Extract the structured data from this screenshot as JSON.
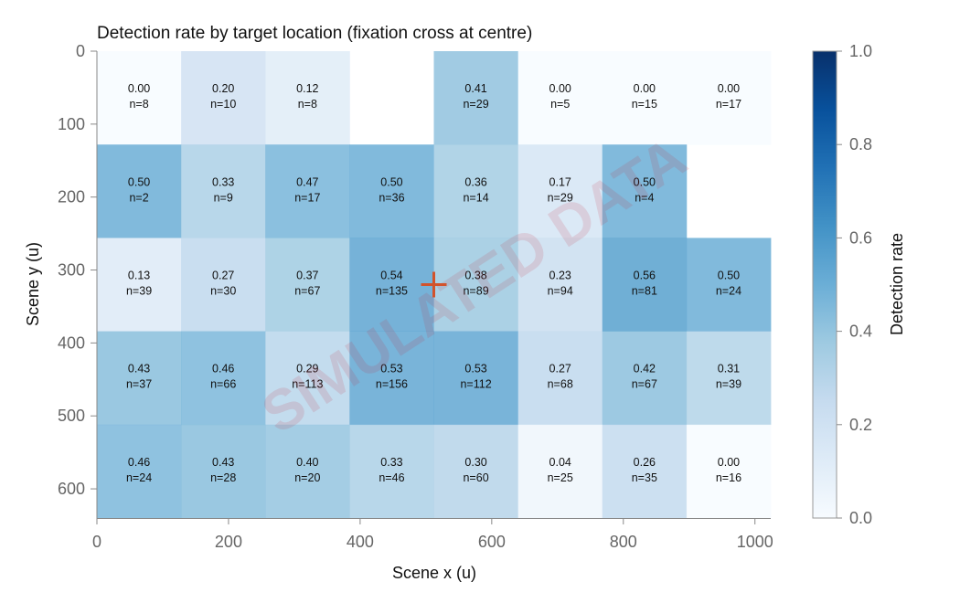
{
  "chart_data": {
    "type": "heatmap",
    "title": "Detection rate by target location (fixation cross at centre)",
    "xlabel": "Scene x (u)",
    "ylabel": "Scene y (u)",
    "xlim": [
      0,
      1024
    ],
    "ylim": [
      640,
      0
    ],
    "x_ticks": [
      "0",
      "200",
      "400",
      "600",
      "800",
      "1000"
    ],
    "y_ticks": [
      "0",
      "100",
      "200",
      "300",
      "400",
      "500",
      "600"
    ],
    "x_bins": [
      0,
      128,
      256,
      384,
      512,
      640,
      768,
      896,
      1024
    ],
    "y_bins": [
      0,
      128,
      256,
      384,
      512,
      640
    ],
    "rows": [
      [
        {
          "rate": 0.0,
          "rate_label": "0.00",
          "n_label": "n=8"
        },
        {
          "rate": 0.2,
          "rate_label": "0.20",
          "n_label": "n=10"
        },
        {
          "rate": 0.12,
          "rate_label": "0.12",
          "n_label": "n=8"
        },
        null,
        {
          "rate": 0.41,
          "rate_label": "0.41",
          "n_label": "n=29"
        },
        {
          "rate": 0.0,
          "rate_label": "0.00",
          "n_label": "n=5"
        },
        {
          "rate": 0.0,
          "rate_label": "0.00",
          "n_label": "n=15"
        },
        {
          "rate": 0.0,
          "rate_label": "0.00",
          "n_label": "n=17"
        }
      ],
      [
        {
          "rate": 0.5,
          "rate_label": "0.50",
          "n_label": "n=2"
        },
        {
          "rate": 0.33,
          "rate_label": "0.33",
          "n_label": "n=9"
        },
        {
          "rate": 0.47,
          "rate_label": "0.47",
          "n_label": "n=17"
        },
        {
          "rate": 0.5,
          "rate_label": "0.50",
          "n_label": "n=36"
        },
        {
          "rate": 0.36,
          "rate_label": "0.36",
          "n_label": "n=14"
        },
        {
          "rate": 0.17,
          "rate_label": "0.17",
          "n_label": "n=29"
        },
        {
          "rate": 0.5,
          "rate_label": "0.50",
          "n_label": "n=4"
        },
        null
      ],
      [
        {
          "rate": 0.13,
          "rate_label": "0.13",
          "n_label": "n=39"
        },
        {
          "rate": 0.27,
          "rate_label": "0.27",
          "n_label": "n=30"
        },
        {
          "rate": 0.37,
          "rate_label": "0.37",
          "n_label": "n=67"
        },
        {
          "rate": 0.54,
          "rate_label": "0.54",
          "n_label": "n=135"
        },
        {
          "rate": 0.38,
          "rate_label": "0.38",
          "n_label": "n=89"
        },
        {
          "rate": 0.23,
          "rate_label": "0.23",
          "n_label": "n=94"
        },
        {
          "rate": 0.56,
          "rate_label": "0.56",
          "n_label": "n=81"
        },
        {
          "rate": 0.5,
          "rate_label": "0.50",
          "n_label": "n=24"
        }
      ],
      [
        {
          "rate": 0.43,
          "rate_label": "0.43",
          "n_label": "n=37"
        },
        {
          "rate": 0.46,
          "rate_label": "0.46",
          "n_label": "n=66"
        },
        {
          "rate": 0.29,
          "rate_label": "0.29",
          "n_label": "n=113"
        },
        {
          "rate": 0.53,
          "rate_label": "0.53",
          "n_label": "n=156"
        },
        {
          "rate": 0.53,
          "rate_label": "0.53",
          "n_label": "n=112"
        },
        {
          "rate": 0.27,
          "rate_label": "0.27",
          "n_label": "n=68"
        },
        {
          "rate": 0.42,
          "rate_label": "0.42",
          "n_label": "n=67"
        },
        {
          "rate": 0.31,
          "rate_label": "0.31",
          "n_label": "n=39"
        }
      ],
      [
        {
          "rate": 0.46,
          "rate_label": "0.46",
          "n_label": "n=24"
        },
        {
          "rate": 0.43,
          "rate_label": "0.43",
          "n_label": "n=28"
        },
        {
          "rate": 0.4,
          "rate_label": "0.40",
          "n_label": "n=20"
        },
        {
          "rate": 0.33,
          "rate_label": "0.33",
          "n_label": "n=46"
        },
        {
          "rate": 0.3,
          "rate_label": "0.30",
          "n_label": "n=60"
        },
        {
          "rate": 0.04,
          "rate_label": "0.04",
          "n_label": "n=25"
        },
        {
          "rate": 0.26,
          "rate_label": "0.26",
          "n_label": "n=35"
        },
        {
          "rate": 0.0,
          "rate_label": "0.00",
          "n_label": "n=16"
        }
      ]
    ],
    "fixation_cross": {
      "x": 512,
      "y": 320
    },
    "colorbar": {
      "label": "Detection rate",
      "range": [
        0,
        1
      ],
      "ticks": [
        "0.0",
        "0.2",
        "0.4",
        "0.6",
        "0.8",
        "1.0"
      ],
      "colormap": "Blues"
    },
    "watermark": "SIMULATED DATA",
    "grid": false,
    "colors": {
      "cross": "#d2532c",
      "watermark": "#c81e2d"
    }
  }
}
